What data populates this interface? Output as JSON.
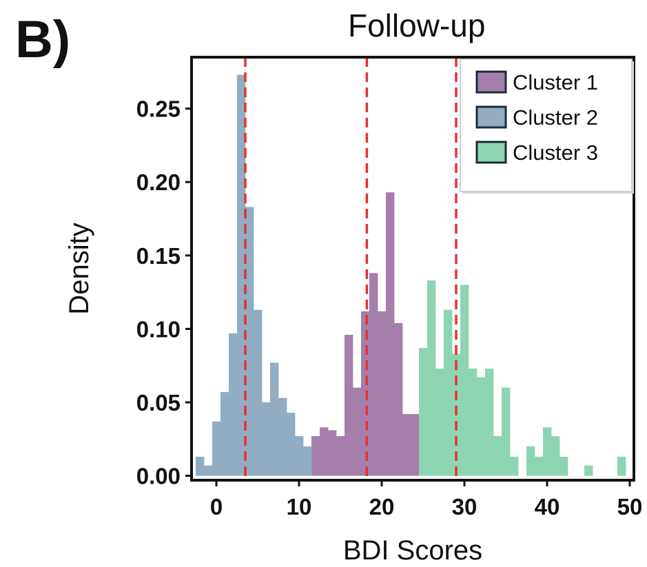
{
  "panel_label": "B)",
  "chart_data": {
    "type": "bar",
    "title": "Follow-up",
    "xlabel": "BDI Scores",
    "ylabel": "Density",
    "xlim": [
      -3,
      50.5
    ],
    "ylim": [
      -0.003,
      0.285
    ],
    "xticks": [
      0,
      10,
      20,
      30,
      40,
      50
    ],
    "yticks": [
      0.0,
      0.05,
      0.1,
      0.15,
      0.2,
      0.25
    ],
    "ytick_labels": [
      "0.00",
      "0.05",
      "0.10",
      "0.15",
      "0.20",
      "0.25"
    ],
    "grid": false,
    "legend_position": "top-right",
    "vlines": [
      3.5,
      18.2,
      29.0
    ],
    "vline_color": "#e8322e",
    "series": [
      {
        "name": "Cluster 1",
        "color": "#a47fa9",
        "bins": [
          {
            "x0": 11.5,
            "x1": 12.5,
            "y": 0.027
          },
          {
            "x0": 12.5,
            "x1": 13.5,
            "y": 0.033
          },
          {
            "x0": 13.5,
            "x1": 14.5,
            "y": 0.031
          },
          {
            "x0": 14.5,
            "x1": 15.5,
            "y": 0.027
          },
          {
            "x0": 15.5,
            "x1": 16.5,
            "y": 0.096
          },
          {
            "x0": 16.5,
            "x1": 17.5,
            "y": 0.06
          },
          {
            "x0": 17.5,
            "x1": 18.5,
            "y": 0.112
          },
          {
            "x0": 18.5,
            "x1": 19.5,
            "y": 0.138
          },
          {
            "x0": 19.5,
            "x1": 20.5,
            "y": 0.112
          },
          {
            "x0": 20.5,
            "x1": 21.5,
            "y": 0.193
          },
          {
            "x0": 21.5,
            "x1": 22.5,
            "y": 0.104
          },
          {
            "x0": 22.5,
            "x1": 23.5,
            "y": 0.042
          },
          {
            "x0": 23.5,
            "x1": 24.5,
            "y": 0.042
          }
        ]
      },
      {
        "name": "Cluster 2",
        "color": "#92adc1",
        "bins": [
          {
            "x0": -2.5,
            "x1": -1.5,
            "y": 0.013
          },
          {
            "x0": -1.5,
            "x1": -0.5,
            "y": 0.007
          },
          {
            "x0": -0.5,
            "x1": 0.5,
            "y": 0.037
          },
          {
            "x0": 0.5,
            "x1": 1.5,
            "y": 0.057
          },
          {
            "x0": 1.5,
            "x1": 2.5,
            "y": 0.097
          },
          {
            "x0": 2.5,
            "x1": 3.5,
            "y": 0.273
          },
          {
            "x0": 3.5,
            "x1": 4.5,
            "y": 0.183
          },
          {
            "x0": 4.5,
            "x1": 5.5,
            "y": 0.113
          },
          {
            "x0": 5.5,
            "x1": 6.5,
            "y": 0.05
          },
          {
            "x0": 6.5,
            "x1": 7.5,
            "y": 0.077
          },
          {
            "x0": 7.5,
            "x1": 8.5,
            "y": 0.053
          },
          {
            "x0": 8.5,
            "x1": 9.5,
            "y": 0.043
          },
          {
            "x0": 9.5,
            "x1": 10.5,
            "y": 0.027
          },
          {
            "x0": 10.5,
            "x1": 11.5,
            "y": 0.02
          }
        ]
      },
      {
        "name": "Cluster 3",
        "color": "#8dd5b2",
        "bins": [
          {
            "x0": 24.5,
            "x1": 25.5,
            "y": 0.087
          },
          {
            "x0": 25.5,
            "x1": 26.5,
            "y": 0.133
          },
          {
            "x0": 26.5,
            "x1": 27.5,
            "y": 0.073
          },
          {
            "x0": 27.5,
            "x1": 28.5,
            "y": 0.113
          },
          {
            "x0": 28.5,
            "x1": 29.5,
            "y": 0.083
          },
          {
            "x0": 29.5,
            "x1": 30.5,
            "y": 0.13
          },
          {
            "x0": 30.5,
            "x1": 31.5,
            "y": 0.073
          },
          {
            "x0": 31.5,
            "x1": 32.5,
            "y": 0.067
          },
          {
            "x0": 32.5,
            "x1": 33.5,
            "y": 0.073
          },
          {
            "x0": 33.5,
            "x1": 34.5,
            "y": 0.027
          },
          {
            "x0": 34.5,
            "x1": 35.5,
            "y": 0.06
          },
          {
            "x0": 35.5,
            "x1": 36.5,
            "y": 0.013
          },
          {
            "x0": 36.5,
            "x1": 37.5,
            "y": 0.0
          },
          {
            "x0": 37.5,
            "x1": 38.5,
            "y": 0.02
          },
          {
            "x0": 38.5,
            "x1": 39.5,
            "y": 0.013
          },
          {
            "x0": 39.5,
            "x1": 40.5,
            "y": 0.033
          },
          {
            "x0": 40.5,
            "x1": 41.5,
            "y": 0.027
          },
          {
            "x0": 41.5,
            "x1": 42.5,
            "y": 0.013
          },
          {
            "x0": 42.5,
            "x1": 43.5,
            "y": 0.0
          },
          {
            "x0": 43.5,
            "x1": 44.5,
            "y": 0.0
          },
          {
            "x0": 44.5,
            "x1": 45.5,
            "y": 0.007
          },
          {
            "x0": 45.5,
            "x1": 46.5,
            "y": 0.0
          },
          {
            "x0": 46.5,
            "x1": 47.5,
            "y": 0.0
          },
          {
            "x0": 47.5,
            "x1": 48.5,
            "y": 0.0
          },
          {
            "x0": 48.5,
            "x1": 49.5,
            "y": 0.013
          }
        ]
      }
    ]
  }
}
